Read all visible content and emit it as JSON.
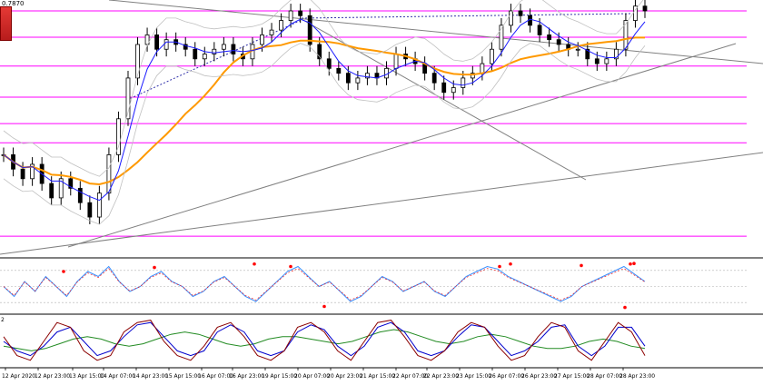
{
  "header": {
    "price_label": "0.7870",
    "lower_panel_number": "2"
  },
  "colors": {
    "horizontal_level": "#ff00ff",
    "ma_fast": "#1a1aff",
    "ma_slow": "#ff9900",
    "bollinger": "#c0c0c0",
    "trendline": "#808080",
    "osc_main": "#3a8fff",
    "osc_signal": "#ff0000",
    "stoch_k": "#8b0000",
    "stoch_d": "#0000cd",
    "stoch_slow": "#228b22",
    "candle": "#000000"
  },
  "chart_data": {
    "type": "candlestick",
    "x_tick_labels": [
      "12 Apr 2020",
      "12 Apr 23:00",
      "13 Apr 15:00",
      "14 Apr 07:00",
      "14 Apr 23:00",
      "15 Apr 15:00",
      "16 Apr 07:00",
      "16 Apr 23:00",
      "19 Apr 15:00",
      "20 Apr 07:00",
      "20 Apr 23:00",
      "21 Apr 15:00",
      "22 Apr 07:00",
      "22 Apr 23:00",
      "23 Apr 15:00",
      "26 Apr 07:00",
      "26 Apr 23:00",
      "27 Apr 15:00",
      "28 Apr 07:00",
      "28 Apr 23:00"
    ],
    "close_series": [
      0.4,
      0.34,
      0.3,
      0.36,
      0.28,
      0.22,
      0.3,
      0.26,
      0.2,
      0.14,
      0.24,
      0.4,
      0.55,
      0.72,
      0.86,
      0.9,
      0.84,
      0.88,
      0.86,
      0.84,
      0.8,
      0.82,
      0.84,
      0.86,
      0.82,
      0.8,
      0.86,
      0.9,
      0.92,
      0.96,
      1.0,
      0.98,
      0.86,
      0.8,
      0.76,
      0.74,
      0.7,
      0.72,
      0.74,
      0.72,
      0.76,
      0.82,
      0.8,
      0.78,
      0.74,
      0.7,
      0.66,
      0.68,
      0.72,
      0.74,
      0.78,
      0.84,
      0.94,
      1.0,
      0.98,
      0.94,
      0.9,
      0.88,
      0.86,
      0.84,
      0.84,
      0.8,
      0.78,
      0.8,
      0.84,
      0.96,
      1.02,
      1.0
    ],
    "price_range": [
      0.0,
      1.0
    ],
    "horizontal_levels": [
      1.0,
      0.89,
      0.77,
      0.64,
      0.53,
      0.45,
      0.06
    ],
    "oscillator_1": {
      "main": [
        0.5,
        0.3,
        0.6,
        0.4,
        0.7,
        0.5,
        0.3,
        0.6,
        0.8,
        0.7,
        0.9,
        0.6,
        0.4,
        0.5,
        0.7,
        0.8,
        0.6,
        0.5,
        0.3,
        0.4,
        0.6,
        0.7,
        0.5,
        0.3,
        0.2,
        0.4,
        0.6,
        0.8,
        0.9,
        0.7,
        0.5,
        0.6,
        0.4,
        0.2,
        0.3,
        0.5,
        0.7,
        0.6,
        0.4,
        0.5,
        0.6,
        0.4,
        0.3,
        0.5,
        0.7,
        0.8,
        0.9,
        0.85,
        0.7,
        0.6,
        0.5,
        0.4,
        0.3,
        0.2,
        0.3,
        0.5,
        0.6,
        0.7,
        0.8,
        0.9,
        0.75,
        0.6
      ],
      "signal_points": [
        0.8,
        0.88,
        0.95,
        0.9,
        0.1,
        0.9,
        0.95,
        0.92,
        0.08,
        0.95,
        0.96
      ]
    },
    "oscillator_2": {
      "k": [
        0.6,
        0.2,
        0.1,
        0.5,
        0.9,
        0.8,
        0.3,
        0.1,
        0.2,
        0.7,
        0.9,
        0.95,
        0.5,
        0.2,
        0.1,
        0.4,
        0.8,
        0.9,
        0.6,
        0.2,
        0.1,
        0.3,
        0.8,
        0.9,
        0.7,
        0.3,
        0.1,
        0.5,
        0.9,
        0.95,
        0.6,
        0.2,
        0.1,
        0.3,
        0.7,
        0.9,
        0.8,
        0.4,
        0.1,
        0.2,
        0.6,
        0.9,
        0.8,
        0.3,
        0.1,
        0.5,
        0.9,
        0.7,
        0.2
      ],
      "d": [
        0.5,
        0.3,
        0.2,
        0.4,
        0.7,
        0.8,
        0.5,
        0.2,
        0.3,
        0.6,
        0.85,
        0.9,
        0.6,
        0.3,
        0.2,
        0.3,
        0.7,
        0.85,
        0.7,
        0.3,
        0.2,
        0.3,
        0.7,
        0.85,
        0.75,
        0.4,
        0.2,
        0.4,
        0.8,
        0.9,
        0.7,
        0.3,
        0.2,
        0.3,
        0.6,
        0.85,
        0.8,
        0.5,
        0.2,
        0.3,
        0.5,
        0.8,
        0.85,
        0.4,
        0.2,
        0.4,
        0.8,
        0.8,
        0.4
      ],
      "slow": [
        0.4,
        0.35,
        0.3,
        0.35,
        0.45,
        0.55,
        0.6,
        0.55,
        0.45,
        0.4,
        0.45,
        0.55,
        0.65,
        0.7,
        0.65,
        0.55,
        0.45,
        0.4,
        0.45,
        0.55,
        0.6,
        0.6,
        0.55,
        0.5,
        0.45,
        0.5,
        0.6,
        0.7,
        0.75,
        0.7,
        0.6,
        0.5,
        0.45,
        0.5,
        0.6,
        0.65,
        0.6,
        0.5,
        0.4,
        0.35,
        0.35,
        0.4,
        0.5,
        0.55,
        0.5,
        0.4,
        0.35
      ]
    }
  }
}
